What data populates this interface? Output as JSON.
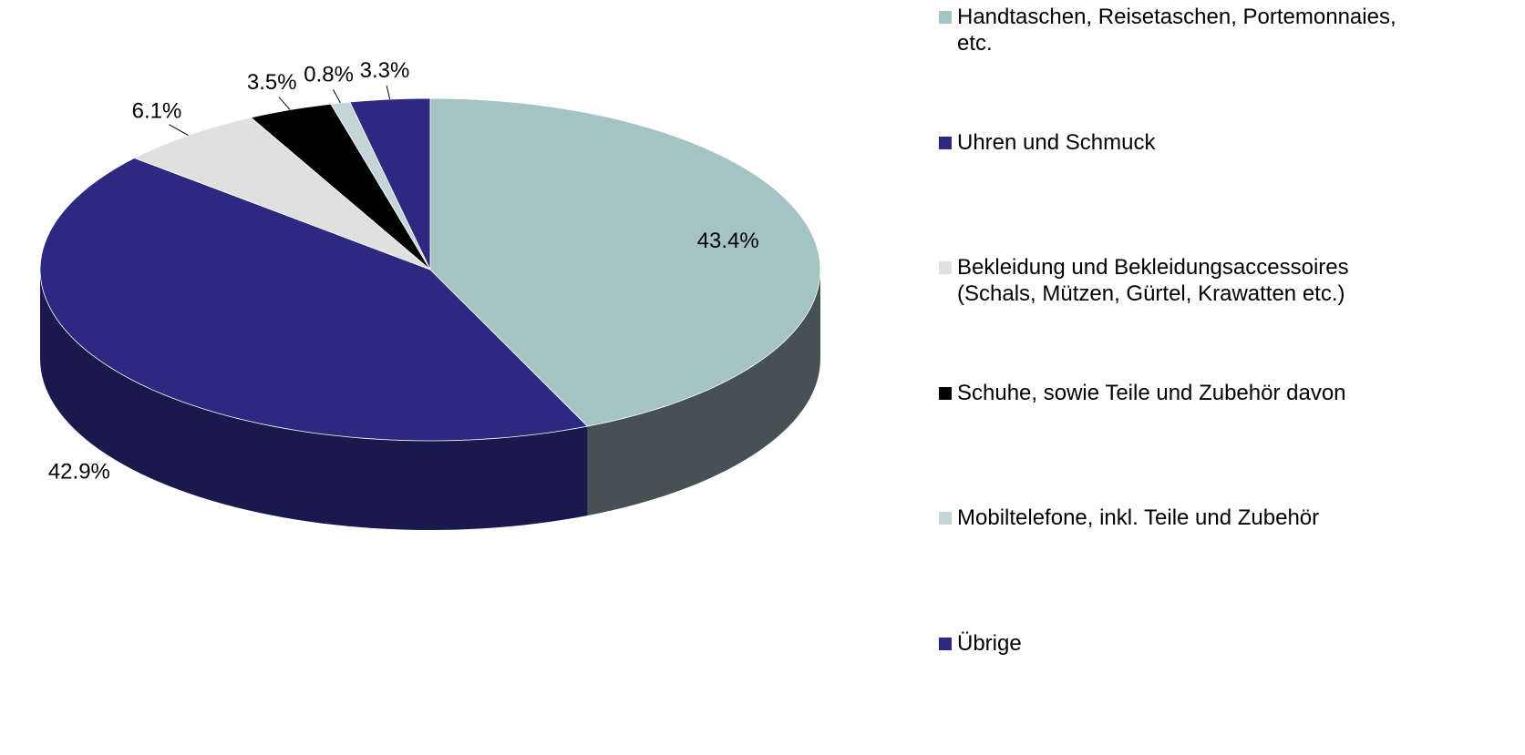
{
  "chart_data": {
    "type": "pie",
    "categories": [
      "Handtaschen, Reisetaschen, Portemonnaies, etc.",
      "Uhren und Schmuck",
      "Bekleidung und Bekleidungsaccessoires (Schals, Mützen, Gürtel, Krawatten etc.)",
      "Schuhe, sowie Teile und Zubehör davon",
      "Mobiltelefone, inkl. Teile und Zubehör",
      "Übrige"
    ],
    "values": [
      43.4,
      42.9,
      6.1,
      3.5,
      0.8,
      3.3
    ],
    "value_labels": [
      "43.4%",
      "42.9%",
      "6.1%",
      "3.5%",
      "0.8%",
      "3.3%"
    ],
    "colors": [
      "#a5c2c5",
      "#2b2a80",
      "#e0e0e0",
      "#000000",
      "#c3d5d7",
      "#2b2a80"
    ],
    "legend": "right"
  }
}
